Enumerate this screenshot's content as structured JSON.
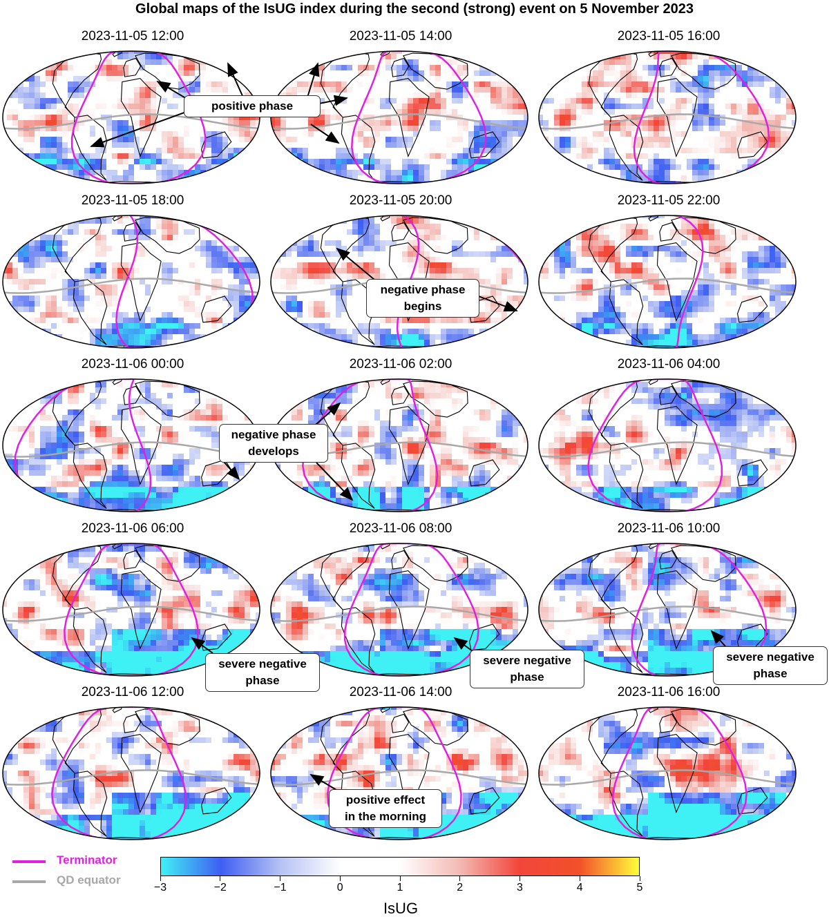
{
  "title": "Global maps of the IsUG index during the second (strong) event on 5 November 2023",
  "panels": [
    {
      "time": "2023-11-05 12:00"
    },
    {
      "time": "2023-11-05 14:00"
    },
    {
      "time": "2023-11-05 16:00"
    },
    {
      "time": "2023-11-05 18:00"
    },
    {
      "time": "2023-11-05 20:00"
    },
    {
      "time": "2023-11-05 22:00"
    },
    {
      "time": "2023-11-06 00:00"
    },
    {
      "time": "2023-11-06 02:00"
    },
    {
      "time": "2023-11-06 04:00"
    },
    {
      "time": "2023-11-06 06:00"
    },
    {
      "time": "2023-11-06 08:00"
    },
    {
      "time": "2023-11-06 10:00"
    },
    {
      "time": "2023-11-06 12:00"
    },
    {
      "time": "2023-11-06 14:00"
    },
    {
      "time": "2023-11-06 16:00"
    }
  ],
  "callouts": {
    "positive_phase": "positive phase",
    "negative_begins": [
      "negative phase",
      "begins"
    ],
    "negative_develops": [
      "negative phase",
      "develops"
    ],
    "severe": [
      "severe negative",
      "phase"
    ],
    "positive_morning": [
      "positive effect",
      "in the morning"
    ]
  },
  "legend": {
    "terminator": "Terminator",
    "terminator_color": "#e020e0",
    "qd_equator": "QD equator",
    "qd_color": "#a8a8a8"
  },
  "colorbar": {
    "label": "IsUG",
    "ticks": [
      "−3",
      "−2",
      "−1",
      "0",
      "1",
      "2",
      "3",
      "4",
      "5"
    ],
    "min": -3,
    "max": 5,
    "colors": [
      "#3ff1f5",
      "#3f5ef2",
      "#b6c2f4",
      "#ffffff",
      "#ffffff",
      "#f3b9b4",
      "#f2463b",
      "#f2502a",
      "#ffff3a"
    ]
  }
}
